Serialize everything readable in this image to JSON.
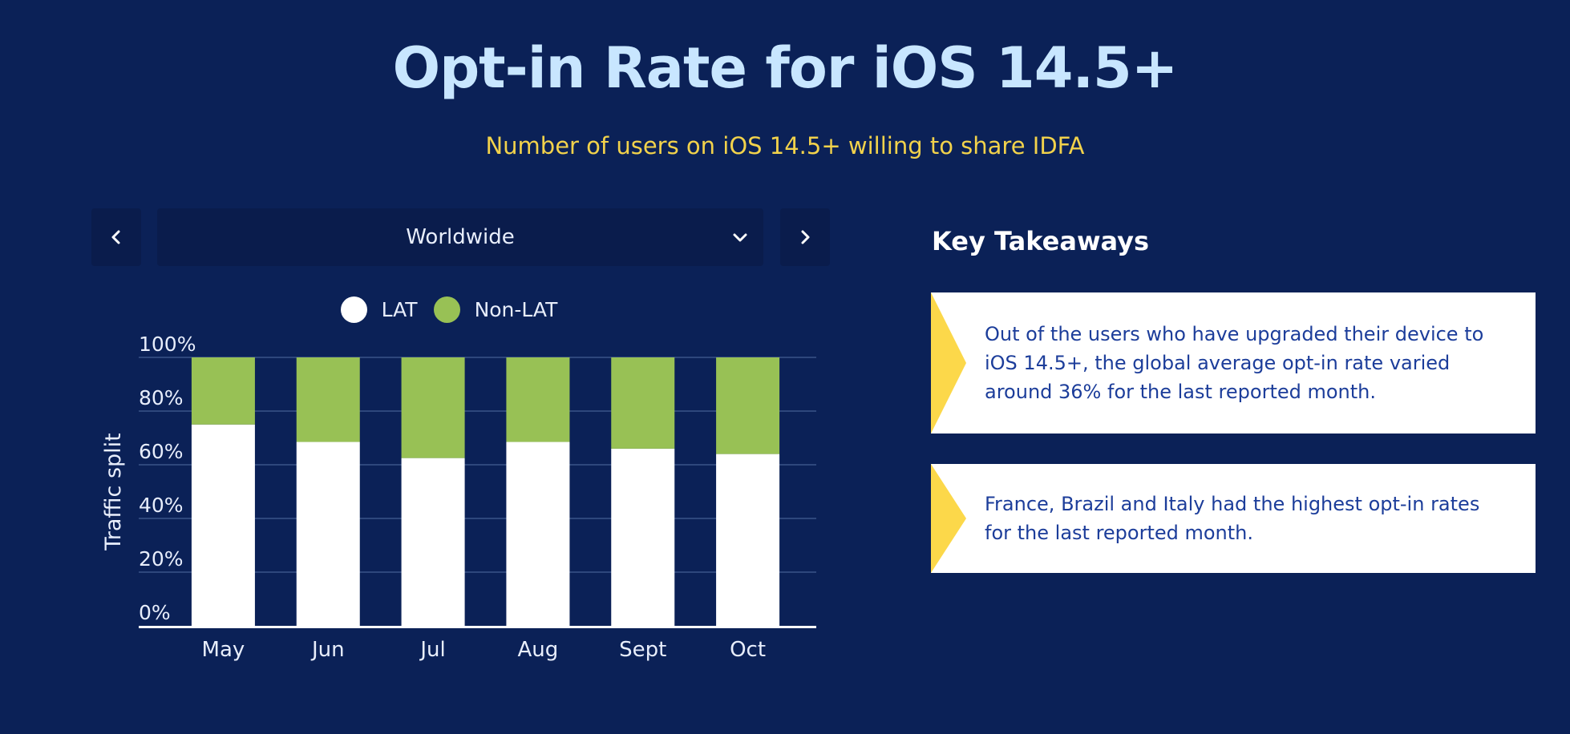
{
  "header": {
    "title": "Opt-in Rate for iOS 14.5+",
    "subtitle": "Number of users on iOS 14.5+ willing to share IDFA"
  },
  "controls": {
    "prev_icon": "chevron-left-icon",
    "next_icon": "chevron-right-icon",
    "dropdown_icon": "chevron-down-icon",
    "region_selected": "Worldwide"
  },
  "legend": {
    "lat_label": "LAT",
    "nonlat_label": "Non-LAT"
  },
  "colors": {
    "background": "#0b2157",
    "lat": "#ffffff",
    "nonlat": "#98c155",
    "title": "#c8e6ff",
    "subtitle": "#f2d24b",
    "card_accent": "#fcd84a",
    "card_text": "#1c3d9a"
  },
  "chart_data": {
    "type": "bar",
    "stacked": true,
    "categories": [
      "May",
      "Jun",
      "Jul",
      "Aug",
      "Sept",
      "Oct"
    ],
    "series": [
      {
        "name": "LAT",
        "values": [
          75,
          68.5,
          62.5,
          68.5,
          66,
          64
        ]
      },
      {
        "name": "Non-LAT",
        "values": [
          25,
          31.5,
          37.5,
          31.5,
          34,
          36
        ]
      }
    ],
    "ylabel": "Traffic split",
    "xlabel": "",
    "ylim": [
      0,
      100
    ],
    "yticks": [
      "0%",
      "20%",
      "40%",
      "60%",
      "80%",
      "100%"
    ],
    "grid": true,
    "legend_position": "top"
  },
  "takeaways": {
    "title": "Key Takeaways",
    "cards": [
      {
        "text": "Out of the users who have upgraded their device to iOS 14.5+, the global average opt-in rate varied around 36% for the last reported month."
      },
      {
        "text": "France, Brazil and Italy had the highest opt-in rates for the last reported month."
      }
    ]
  }
}
